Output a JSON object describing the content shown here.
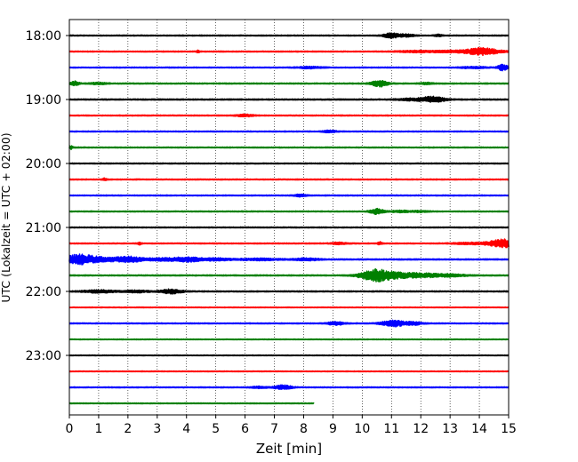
{
  "chart_data": {
    "type": "line",
    "xlabel": "Zeit  [min]",
    "ylabel": "UTC (Lokalzeit = UTC + 02:00)",
    "xlim": [
      0,
      15
    ],
    "x_ticks": [
      "0",
      "1",
      "2",
      "3",
      "4",
      "5",
      "6",
      "7",
      "8",
      "9",
      "10",
      "11",
      "12",
      "13",
      "14",
      "15"
    ],
    "y_tick_labels": [
      "18:00",
      "19:00",
      "20:00",
      "21:00",
      "22:00",
      "23:00"
    ],
    "vertical_gridlines": true,
    "colors": [
      "#000000",
      "#ff0000",
      "#0000ff",
      "#008000"
    ],
    "traces": [
      {
        "time": "18:00",
        "color": "#000000",
        "noise": 0.5,
        "end": 15,
        "events": [
          [
            11.0,
            2.8,
            0.18
          ],
          [
            11.5,
            1.4,
            0.2
          ],
          [
            12.6,
            1.0,
            0.1
          ]
        ]
      },
      {
        "time": "18:15",
        "color": "#ff0000",
        "noise": 0.5,
        "end": 15,
        "events": [
          [
            4.4,
            1.5,
            0.03
          ],
          [
            11.8,
            1.0,
            0.4
          ],
          [
            13.1,
            1.2,
            0.5
          ],
          [
            14.0,
            3.5,
            0.3
          ],
          [
            14.5,
            1.5,
            0.3
          ]
        ]
      },
      {
        "time": "18:30",
        "color": "#0000ff",
        "noise": 0.5,
        "end": 15,
        "events": [
          [
            8.2,
            1.0,
            0.3
          ],
          [
            13.8,
            1.0,
            0.3
          ],
          [
            14.8,
            3.5,
            0.12
          ]
        ]
      },
      {
        "time": "18:45",
        "color": "#008000",
        "noise": 0.55,
        "end": 15,
        "events": [
          [
            0.2,
            2.3,
            0.1
          ],
          [
            1.0,
            1.0,
            0.2
          ],
          [
            10.6,
            3.5,
            0.2
          ],
          [
            12.2,
            1.0,
            0.15
          ]
        ]
      },
      {
        "time": "19:00",
        "color": "#000000",
        "noise": 0.6,
        "end": 15,
        "events": [
          [
            12.4,
            3.0,
            0.3
          ],
          [
            11.6,
            1.0,
            0.3
          ]
        ]
      },
      {
        "time": "19:15",
        "color": "#ff0000",
        "noise": 0.5,
        "end": 15,
        "events": [
          [
            6.0,
            1.2,
            0.2
          ]
        ]
      },
      {
        "time": "19:30",
        "color": "#0000ff",
        "noise": 0.5,
        "end": 15,
        "events": [
          [
            8.9,
            1.2,
            0.15
          ]
        ]
      },
      {
        "time": "19:45",
        "color": "#008000",
        "noise": 0.5,
        "end": 15,
        "events": [
          [
            0.05,
            1.8,
            0.05
          ]
        ]
      },
      {
        "time": "20:00",
        "color": "#000000",
        "noise": 0.5,
        "end": 15,
        "events": []
      },
      {
        "time": "20:15",
        "color": "#ff0000",
        "noise": 0.5,
        "end": 15,
        "events": [
          [
            1.2,
            1.2,
            0.05
          ]
        ]
      },
      {
        "time": "20:30",
        "color": "#0000ff",
        "noise": 0.5,
        "end": 15,
        "events": [
          [
            7.9,
            1.3,
            0.15
          ]
        ]
      },
      {
        "time": "20:45",
        "color": "#008000",
        "noise": 0.5,
        "end": 15,
        "events": [
          [
            10.5,
            3.5,
            0.15
          ],
          [
            11.3,
            1.0,
            0.25
          ],
          [
            12.0,
            0.8,
            0.2
          ]
        ]
      },
      {
        "time": "21:00",
        "color": "#000000",
        "noise": 0.5,
        "end": 15,
        "events": []
      },
      {
        "time": "21:15",
        "color": "#ff0000",
        "noise": 0.5,
        "end": 15,
        "events": [
          [
            2.4,
            1.3,
            0.05
          ],
          [
            9.2,
            1.1,
            0.2
          ],
          [
            10.6,
            1.5,
            0.05
          ],
          [
            13.8,
            1.0,
            0.5
          ],
          [
            14.8,
            4.5,
            0.3
          ]
        ]
      },
      {
        "time": "21:30",
        "color": "#0000ff",
        "noise": 0.6,
        "end": 15,
        "events": [
          [
            0.3,
            5.0,
            0.4
          ],
          [
            1.2,
            2.0,
            0.5
          ],
          [
            2.1,
            2.6,
            0.3
          ],
          [
            3.3,
            1.5,
            0.5
          ],
          [
            4.1,
            2.0,
            0.3
          ],
          [
            5.0,
            1.3,
            0.4
          ],
          [
            6.5,
            1.0,
            0.5
          ],
          [
            8.1,
            1.3,
            0.3
          ]
        ]
      },
      {
        "time": "21:45",
        "color": "#008000",
        "noise": 0.55,
        "end": 15,
        "events": [
          [
            10.4,
            5.5,
            0.35
          ],
          [
            11.1,
            3.0,
            0.5
          ],
          [
            12.1,
            1.8,
            0.4
          ],
          [
            13.0,
            1.3,
            0.4
          ]
        ]
      },
      {
        "time": "22:00",
        "color": "#000000",
        "noise": 0.55,
        "end": 15,
        "events": [
          [
            1.0,
            1.5,
            0.4
          ],
          [
            2.3,
            1.2,
            0.3
          ],
          [
            3.5,
            2.5,
            0.25
          ]
        ]
      },
      {
        "time": "22:15",
        "color": "#ff0000",
        "noise": 0.4,
        "end": 15,
        "events": []
      },
      {
        "time": "22:30",
        "color": "#0000ff",
        "noise": 0.5,
        "end": 15,
        "events": [
          [
            9.1,
            2.0,
            0.2
          ],
          [
            11.1,
            3.5,
            0.3
          ],
          [
            11.8,
            1.5,
            0.2
          ]
        ]
      },
      {
        "time": "22:45",
        "color": "#008000",
        "noise": 0.4,
        "end": 15,
        "events": []
      },
      {
        "time": "23:00",
        "color": "#000000",
        "noise": 0.4,
        "end": 15,
        "events": []
      },
      {
        "time": "23:15",
        "color": "#ff0000",
        "noise": 0.4,
        "end": 15,
        "events": []
      },
      {
        "time": "23:30",
        "color": "#0000ff",
        "noise": 0.5,
        "end": 15,
        "events": [
          [
            7.3,
            2.5,
            0.2
          ],
          [
            6.5,
            1.0,
            0.2
          ]
        ]
      },
      {
        "time": "23:45",
        "color": "#008000",
        "noise": 0.45,
        "end": 8.35,
        "events": []
      }
    ]
  }
}
